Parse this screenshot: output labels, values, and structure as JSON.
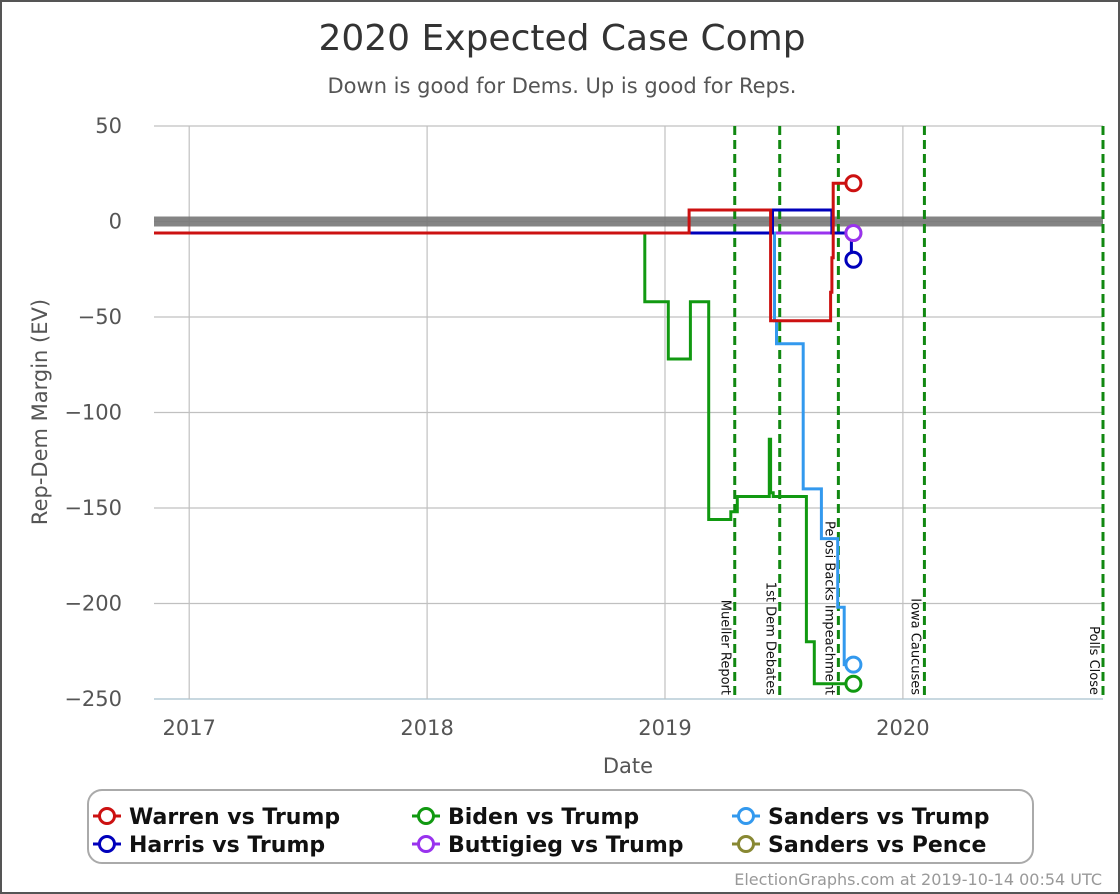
{
  "chart_data": {
    "type": "line",
    "title": "2020 Expected Case Comp",
    "subtitle": "Down is good for Dems. Up is good for Reps.",
    "xlabel": "Date",
    "ylabel": "Rep-Dem Margin (EV)",
    "xlim": [
      "2016-11-08",
      "2020-11-03"
    ],
    "ylim": [
      -250,
      50
    ],
    "x_ticks": [
      "2017-01-01",
      "2018-01-01",
      "2019-01-01",
      "2020-01-01"
    ],
    "x_tick_labels": [
      "2017",
      "2018",
      "2019",
      "2020"
    ],
    "y_ticks": [
      50,
      0,
      -50,
      -100,
      -150,
      -200,
      -250
    ],
    "y_tick_labels": [
      "50",
      "0",
      "−50",
      "−100",
      "−150",
      "−200",
      "−250"
    ],
    "grid": true,
    "reference_line": {
      "y": 0,
      "color": "#777777"
    },
    "events": [
      {
        "date": "2019-04-18",
        "label": "Mueller Report",
        "color": "#118811"
      },
      {
        "date": "2019-06-26",
        "label": "1st Dem Debates",
        "color": "#118811"
      },
      {
        "date": "2019-09-24",
        "label": "Pelosi Backs Impeachment",
        "color": "#118811"
      },
      {
        "date": "2020-02-03",
        "label": "Iowa Caucuses",
        "color": "#118811"
      },
      {
        "date": "2020-11-03",
        "label": "Polls Close",
        "color": "#118811"
      }
    ],
    "series": [
      {
        "name": "Sanders vs Pence",
        "color": "#888833",
        "points": [
          [
            "2016-11-08",
            -6
          ],
          [
            "2019-10-14",
            -6
          ]
        ],
        "end_value": -6
      },
      {
        "name": "Buttigieg vs Trump",
        "color": "#9933ee",
        "points": [
          [
            "2016-11-08",
            -6
          ],
          [
            "2019-10-14",
            -6
          ]
        ],
        "end_value": -6
      },
      {
        "name": "Sanders vs Trump",
        "color": "#3399ee",
        "points": [
          [
            "2016-11-08",
            -6
          ],
          [
            "2019-06-18",
            -6
          ],
          [
            "2019-06-18",
            -52
          ],
          [
            "2019-06-21",
            -52
          ],
          [
            "2019-06-21",
            -64
          ],
          [
            "2019-08-01",
            -64
          ],
          [
            "2019-08-01",
            -140
          ],
          [
            "2019-08-29",
            -140
          ],
          [
            "2019-08-29",
            -166
          ],
          [
            "2019-09-23",
            -166
          ],
          [
            "2019-09-23",
            -202
          ],
          [
            "2019-10-03",
            -202
          ],
          [
            "2019-10-03",
            -232
          ],
          [
            "2019-10-14",
            -232
          ]
        ],
        "end_value": -232
      },
      {
        "name": "Biden vs Trump",
        "color": "#119911",
        "points": [
          [
            "2016-11-08",
            -6
          ],
          [
            "2018-12-01",
            -6
          ],
          [
            "2018-12-01",
            -42
          ],
          [
            "2019-01-06",
            -42
          ],
          [
            "2019-01-06",
            -72
          ],
          [
            "2019-02-09",
            -72
          ],
          [
            "2019-02-09",
            -42
          ],
          [
            "2019-03-09",
            -42
          ],
          [
            "2019-03-09",
            -156
          ],
          [
            "2019-04-12",
            -156
          ],
          [
            "2019-04-12",
            -152
          ],
          [
            "2019-04-22",
            -152
          ],
          [
            "2019-04-22",
            -144
          ],
          [
            "2019-06-10",
            -144
          ],
          [
            "2019-06-10",
            -114
          ],
          [
            "2019-06-12",
            -114
          ],
          [
            "2019-06-12",
            -142
          ],
          [
            "2019-06-16",
            -142
          ],
          [
            "2019-06-16",
            -144
          ],
          [
            "2019-08-06",
            -144
          ],
          [
            "2019-08-06",
            -220
          ],
          [
            "2019-08-18",
            -220
          ],
          [
            "2019-08-18",
            -242
          ],
          [
            "2019-10-14",
            -242
          ]
        ],
        "end_value": -242
      },
      {
        "name": "Harris vs Trump",
        "color": "#0000bb",
        "points": [
          [
            "2016-11-08",
            -6
          ],
          [
            "2019-06-15",
            -6
          ],
          [
            "2019-06-15",
            6
          ],
          [
            "2019-09-14",
            6
          ],
          [
            "2019-09-14",
            -6
          ],
          [
            "2019-10-14",
            -6
          ],
          [
            "2019-10-14",
            -20
          ]
        ],
        "end_value": -20
      },
      {
        "name": "Warren vs Trump",
        "color": "#cc1111",
        "points": [
          [
            "2016-11-08",
            -6
          ],
          [
            "2019-02-07",
            -6
          ],
          [
            "2019-02-07",
            6
          ],
          [
            "2019-06-12",
            6
          ],
          [
            "2019-06-12",
            -52
          ],
          [
            "2019-09-12",
            -52
          ],
          [
            "2019-09-12",
            -37
          ],
          [
            "2019-09-14",
            -37
          ],
          [
            "2019-09-14",
            -19
          ],
          [
            "2019-09-16",
            -19
          ],
          [
            "2019-09-16",
            20
          ],
          [
            "2019-10-14",
            20
          ]
        ],
        "end_value": 20
      }
    ],
    "legend": {
      "placement": "bottom",
      "entries": [
        {
          "name": "Warren vs Trump",
          "color": "#cc1111"
        },
        {
          "name": "Biden vs Trump",
          "color": "#119911"
        },
        {
          "name": "Sanders vs Trump",
          "color": "#3399ee"
        },
        {
          "name": "Harris vs Trump",
          "color": "#0000bb"
        },
        {
          "name": "Buttigieg vs Trump",
          "color": "#9933ee"
        },
        {
          "name": "Sanders vs Pence",
          "color": "#888833"
        }
      ]
    },
    "credit": "ElectionGraphs.com at 2019-10-14 00:54 UTC"
  }
}
